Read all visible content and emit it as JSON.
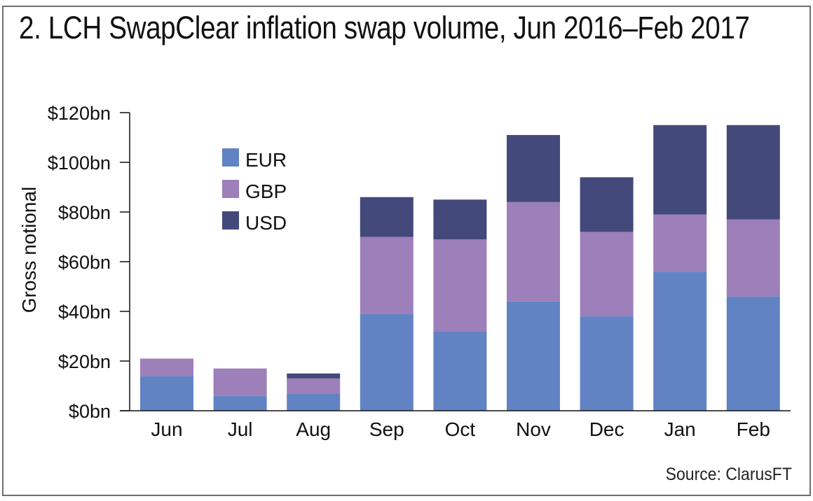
{
  "chart_data": {
    "type": "bar",
    "stacked": true,
    "title": "2. LCH SwapClear inflation swap volume, Jun 2016–Feb 2017",
    "xlabel": "",
    "ylabel": "Gross notional",
    "categories": [
      "Jun",
      "Jul",
      "Aug",
      "Sep",
      "Oct",
      "Nov",
      "Dec",
      "Jan",
      "Feb"
    ],
    "series": [
      {
        "name": "EUR",
        "color": "#6283c3",
        "values": [
          14,
          6,
          7,
          39,
          32,
          44,
          38,
          56,
          46
        ]
      },
      {
        "name": "GBP",
        "color": "#9d7fba",
        "values": [
          7,
          11,
          6,
          31,
          37,
          40,
          34,
          23,
          31
        ]
      },
      {
        "name": "USD",
        "color": "#43497a",
        "values": [
          0,
          0,
          2,
          16,
          16,
          27,
          22,
          36,
          38
        ]
      }
    ],
    "ylim": [
      0,
      120
    ],
    "yticks": [
      0,
      20,
      40,
      60,
      80,
      100,
      120
    ],
    "ytick_labels": [
      "$0bn",
      "$20bn",
      "$40bn",
      "$60bn",
      "$80bn",
      "$100bn",
      "$120bn"
    ],
    "legend": {
      "position": "top-left",
      "entries": [
        "EUR",
        "GBP",
        "USD"
      ]
    },
    "grid": false,
    "source": "Source: ClarusFT"
  }
}
